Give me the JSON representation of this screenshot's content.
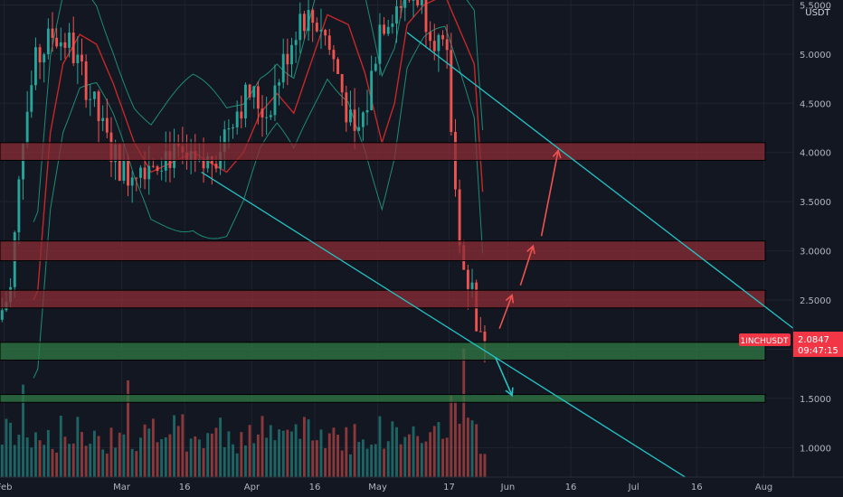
{
  "chart_data": {
    "type": "candlestick",
    "symbol": "1INCHUSDT",
    "quote_currency": "USDT",
    "last_price": "2.0847",
    "countdown": "09:47:15",
    "y_ticks": [
      "1.0000",
      "1.5000",
      "2.0000",
      "2.5000",
      "3.0000",
      "3.5000",
      "4.0000",
      "4.5000",
      "5.0000",
      "5.5000"
    ],
    "x_ticks": [
      "Feb",
      "Mar",
      "16",
      "Apr",
      "16",
      "May",
      "17",
      "Jun",
      "16",
      "Jul",
      "16",
      "Aug"
    ],
    "x_range_days": [
      0,
      189
    ],
    "y_range": [
      0.7,
      5.55
    ],
    "zones": [
      {
        "color": "#8b2c34",
        "low": 3.92,
        "high": 4.1
      },
      {
        "color": "#8b2c34",
        "low": 2.9,
        "high": 3.1
      },
      {
        "color": "#8b2c34",
        "low": 2.42,
        "high": 2.6
      },
      {
        "color": "#2f7a44",
        "low": 1.89,
        "high": 2.07
      },
      {
        "color": "#2f7a44",
        "low": 1.46,
        "high": 1.54
      }
    ],
    "trendlines": [
      {
        "color": "#22c4c6",
        "from": [
          97,
          5.22
        ],
        "to": [
          190,
          2.18
        ]
      },
      {
        "color": "#22c4c6",
        "from": [
          48,
          3.8
        ],
        "to": [
          164,
          0.68
        ]
      }
    ],
    "arrows": [
      {
        "color": "#ef5350",
        "from": [
          119,
          2.21
        ],
        "to": [
          122,
          2.55
        ]
      },
      {
        "color": "#ef5350",
        "from": [
          124,
          2.65
        ],
        "to": [
          127,
          3.05
        ]
      },
      {
        "color": "#ef5350",
        "from": [
          129,
          3.15
        ],
        "to": [
          133,
          4.02
        ]
      },
      {
        "color": "#22c4c6",
        "from": [
          118,
          1.92
        ],
        "to": [
          122,
          1.53
        ]
      }
    ],
    "colors": {
      "up": "#26a69a",
      "down": "#ef5350",
      "ma": "#c62828",
      "bands": "#1e8c76"
    }
  }
}
